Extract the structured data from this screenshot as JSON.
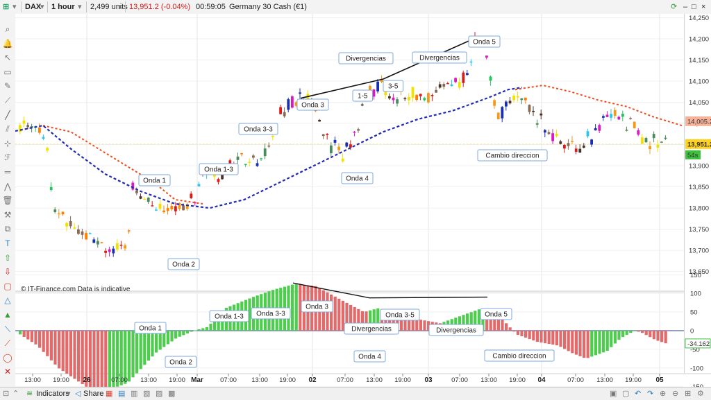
{
  "topbar": {
    "instrument": "DAX",
    "timeframe": "1 hour",
    "units": "2,499 units",
    "price_change": "13,951.2 (-0.04%)",
    "countdown": "00:59:05",
    "instrument_name": "Germany 30 Cash (€1)"
  },
  "toolbar": {
    "icons": [
      "magnifier-icon",
      "bell-icon",
      "cursor-icon",
      "ruler-icon",
      "pencil-icon",
      "measure-icon",
      "line-icon",
      "channel-icon",
      "crosshair-icon",
      "fibonacci-icon",
      "level-icon",
      "pattern-icon",
      "trash-icon",
      "tools-icon",
      "copy-icon",
      "text-icon",
      "arrow-up-icon",
      "arrow-down-icon",
      "shape-icon",
      "triangle-icon",
      "triangle2-icon",
      "diagonal-icon",
      "diagonal2-icon",
      "ellipse-icon",
      "cross-icon"
    ]
  },
  "chart": {
    "watermark": "© IT-Finance.com  Data is indicative",
    "price_axis": [
      "14,250",
      "14,200",
      "14,150",
      "14,100",
      "14,050",
      "14,000",
      "13,950",
      "13,900",
      "13,850",
      "13,800",
      "13,750",
      "13,700",
      "13,650"
    ],
    "last_price_label": "13,951.2",
    "countdown_label": "54s",
    "ma_label": "14,005.2",
    "osc_axis": [
      "150",
      "100",
      "50",
      "0",
      "-50",
      "-100",
      "-150"
    ],
    "osc_value_label": "-34.162",
    "time_axis": [
      {
        "label": "13:00",
        "bold": false
      },
      {
        "label": "19:00",
        "bold": false
      },
      {
        "label": "26",
        "bold": true
      },
      {
        "label": "07:00",
        "bold": false
      },
      {
        "label": "13:00",
        "bold": false
      },
      {
        "label": "19:00",
        "bold": false
      },
      {
        "label": "Mar",
        "bold": true
      },
      {
        "label": "07:00",
        "bold": false
      },
      {
        "label": "13:00",
        "bold": false
      },
      {
        "label": "19:00",
        "bold": false
      },
      {
        "label": "02",
        "bold": true
      },
      {
        "label": "07:00",
        "bold": false
      },
      {
        "label": "13:00",
        "bold": false
      },
      {
        "label": "19:00",
        "bold": false
      },
      {
        "label": "03",
        "bold": true
      },
      {
        "label": "07:00",
        "bold": false
      },
      {
        "label": "13:00",
        "bold": false
      },
      {
        "label": "19:00",
        "bold": false
      },
      {
        "label": "04",
        "bold": true
      },
      {
        "label": "07:00",
        "bold": false
      },
      {
        "label": "13:00",
        "bold": false
      },
      {
        "label": "19:00",
        "bold": false
      },
      {
        "label": "05",
        "bold": true
      }
    ],
    "price_annotations": [
      {
        "text": "Onda 1"
      },
      {
        "text": "Onda 2"
      },
      {
        "text": "Onda 1-3"
      },
      {
        "text": "Onda 3-3"
      },
      {
        "text": "Onda 3"
      },
      {
        "text": "Divergencias"
      },
      {
        "text": "1-5"
      },
      {
        "text": "3-5"
      },
      {
        "text": "Onda 4"
      },
      {
        "text": "Divergencias"
      },
      {
        "text": "Onda 5"
      },
      {
        "text": "Cambio direccion"
      }
    ],
    "osc_annotations": [
      {
        "text": "Onda 1"
      },
      {
        "text": "Onda 2"
      },
      {
        "text": "Onda 1-3"
      },
      {
        "text": "Onda 3-3"
      },
      {
        "text": "Onda 3"
      },
      {
        "text": "Divergencias"
      },
      {
        "text": "Onda 4"
      },
      {
        "text": "Onda 3-5"
      },
      {
        "text": "Divergencias"
      },
      {
        "text": "Onda 5"
      },
      {
        "text": "Cambio direccion"
      }
    ],
    "colors": {
      "ma_fast": "#1f2bb5",
      "ma_slow": "#f04a1a",
      "osc_up": "#4cce4c",
      "osc_down": "#e36a6a",
      "last_price_bg": "#ffd21e",
      "ma_label_bg": "#f6b39a"
    }
  },
  "bottombar": {
    "indicators_label": "Indicators",
    "share_label": "Share"
  }
}
